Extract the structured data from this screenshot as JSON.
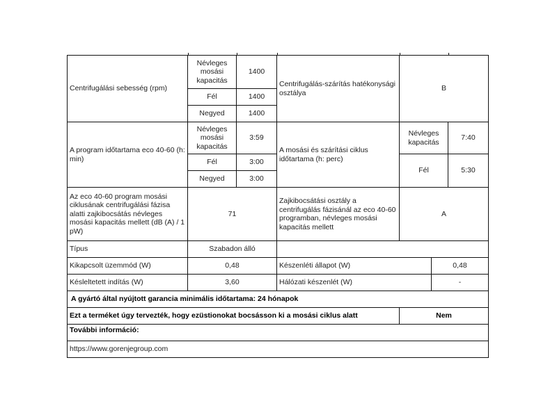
{
  "spin_speed": {
    "label": "Centrifugálási sebesség (rpm)",
    "rows": [
      {
        "load": "Névleges mosási kapacitás",
        "value": "1400"
      },
      {
        "load": "Fél",
        "value": "1400"
      },
      {
        "load": "Negyed",
        "value": "1400"
      }
    ],
    "efficiency_label": "Centrifugálás-szárítás hatékonysági osztálya",
    "efficiency_value": "B"
  },
  "program_duration": {
    "label": "A program időtartama eco 40-60 (h: min)",
    "rows": [
      {
        "load": "Névleges mosási kapacitás",
        "value": "3:59"
      },
      {
        "load": "Fél",
        "value": "3:00"
      },
      {
        "load": "Negyed",
        "value": "3:00"
      }
    ],
    "cycle_label": "A mosási és szárítási ciklus időtartama (h: perc)",
    "cycle_rows": [
      {
        "load": "Névleges kapacitás",
        "value": "7:40"
      },
      {
        "load": "Fél",
        "value": "5:30"
      }
    ]
  },
  "noise": {
    "label": "Az eco 40-60 program mosási ciklusának centrifugálási fázisa alatti zajkibocsátás névleges mosási kapacitás mellett (dB (A) / 1 pW)",
    "value": "71",
    "class_label": "Zajkibocsátási osztály a centrifugálás fázisánál az eco 40-60 programban, névleges mosási kapacitás mellett",
    "class_value": "A"
  },
  "type": {
    "label": "Típus",
    "value": "Szabadon álló"
  },
  "off_mode": {
    "label": "Kikapcsolt üzemmód (W)",
    "value": "0,48",
    "standby_label": "Készenléti állapot (W)",
    "standby_value": "0,48"
  },
  "delay_start": {
    "label": "Késleltetett indítás (W)",
    "value": "3,60",
    "network_label": "Hálózati készenlét (W)",
    "network_value": "-"
  },
  "warranty": "A gyártó által nyújtott garancia minimális időtartama:  24 hónapok",
  "silver_ions": {
    "label": "Ezt a terméket úgy tervezték, hogy ezüstionokat bocsásson ki a mosási ciklus alatt",
    "value": "Nem"
  },
  "more_info": {
    "label": "További információ:",
    "url": "https://www.gorenjegroup.com"
  }
}
